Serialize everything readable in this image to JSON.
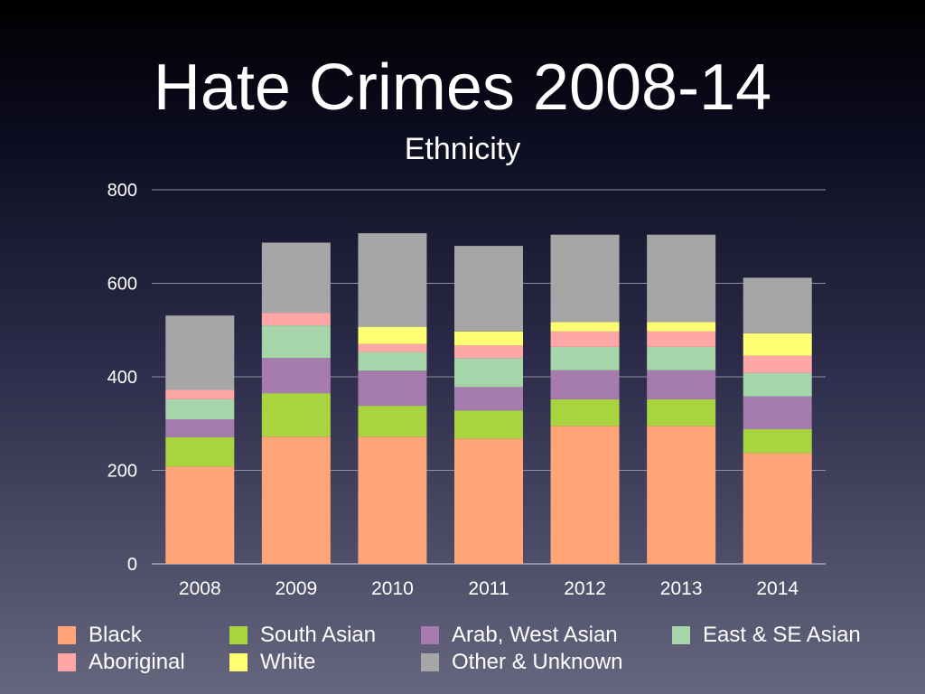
{
  "slide": {
    "title": "Hate Crimes 2008-14",
    "subtitle": "Ethnicity"
  },
  "chart_data": {
    "type": "bar",
    "stacked": true,
    "categories": [
      "2008",
      "2009",
      "2010",
      "2011",
      "2012",
      "2013",
      "2014"
    ],
    "ylim": [
      0,
      800
    ],
    "yticks": [
      0,
      200,
      400,
      600,
      800
    ],
    "grid": true,
    "legend_position": "bottom",
    "series": [
      {
        "name": "Black",
        "color": "#FFA577",
        "values": [
          208,
          272,
          272,
          268,
          295,
          295,
          237
        ]
      },
      {
        "name": "South Asian",
        "color": "#A8D53F",
        "values": [
          63,
          93,
          66,
          60,
          57,
          57,
          51
        ]
      },
      {
        "name": "Arab, West Asian",
        "color": "#A67BAE",
        "values": [
          38,
          75,
          75,
          50,
          62,
          62,
          70
        ]
      },
      {
        "name": "East & SE Asian",
        "color": "#A6D5AA",
        "values": [
          43,
          70,
          40,
          62,
          50,
          50,
          50
        ]
      },
      {
        "name": "Aboriginal",
        "color": "#FFA7A7",
        "values": [
          20,
          27,
          17,
          27,
          33,
          33,
          37
        ]
      },
      {
        "name": "White",
        "color": "#FFFF73",
        "values": [
          0,
          0,
          37,
          30,
          20,
          20,
          48
        ]
      },
      {
        "name": "Other & Unknown",
        "color": "#A6A6A6",
        "values": [
          159,
          150,
          200,
          183,
          187,
          187,
          119
        ]
      }
    ]
  }
}
